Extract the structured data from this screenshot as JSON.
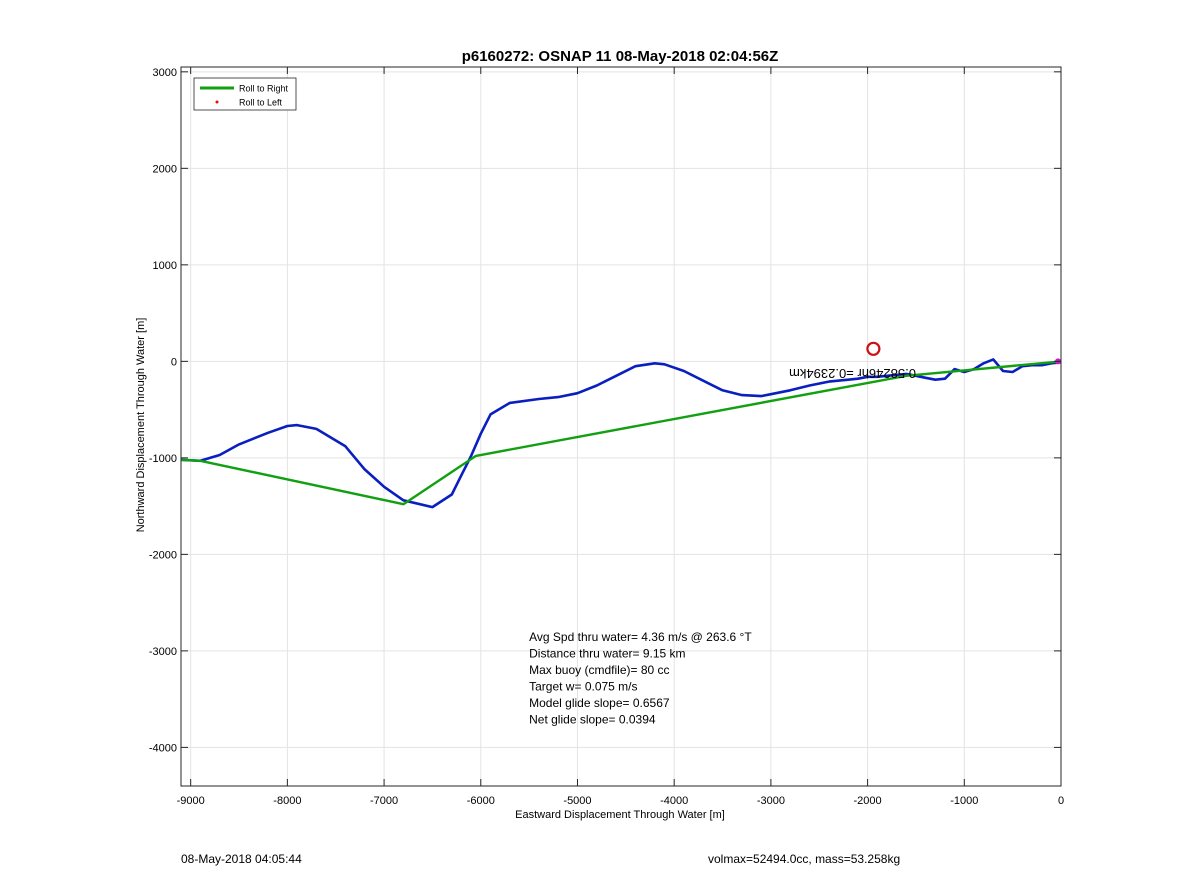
{
  "chart_data": {
    "type": "line",
    "title": "p6160272: OSNAP 11 08-May-2018 02:04:56Z",
    "xlabel": "Eastward Displacement Through Water [m]",
    "ylabel": "Northward Displacement Through Water [m]",
    "xlim": [
      -9100,
      0
    ],
    "ylim": [
      -4400,
      3050
    ],
    "xticks": [
      -9000,
      -8000,
      -7000,
      -6000,
      -5000,
      -4000,
      -3000,
      -2000,
      -1000,
      0
    ],
    "yticks": [
      -4000,
      -3000,
      -2000,
      -1000,
      0,
      1000,
      2000,
      3000
    ],
    "grid": true,
    "legend": {
      "placement": "top-left",
      "entries": [
        {
          "label": "Roll to Right",
          "color": "#12a012",
          "marker": "line"
        },
        {
          "label": "Roll to Left",
          "color": "#e01010",
          "marker": "dot"
        }
      ]
    },
    "series": [
      {
        "color": "#0a1fbf",
        "x": [
          0,
          -100,
          -200,
          -300,
          -400,
          -500,
          -600,
          -700,
          -800,
          -900,
          -1000,
          -1100,
          -1200,
          -1300,
          -1400,
          -1500,
          -1600,
          -1700,
          -1800,
          -1900,
          -2000,
          -2100,
          -2200,
          -2400,
          -2600,
          -2800,
          -3000,
          -3100,
          -3300,
          -3500,
          -3700,
          -3900,
          -4100,
          -4200,
          -4400,
          -4600,
          -4800,
          -5000,
          -5200,
          -5400,
          -5700,
          -5900,
          -6000,
          -6100,
          -6200,
          -6300,
          -6500,
          -6800,
          -7000,
          -7200,
          -7400,
          -7700,
          -7900,
          -8000,
          -8200,
          -8500,
          -8700,
          -8900,
          -9100
        ],
        "y": [
          -10,
          -20,
          -40,
          -40,
          -50,
          -110,
          -100,
          20,
          -20,
          -80,
          -110,
          -80,
          -180,
          -190,
          -170,
          -150,
          -130,
          -140,
          -150,
          -160,
          -160,
          -180,
          -190,
          -210,
          -250,
          -300,
          -340,
          -360,
          -350,
          -300,
          -200,
          -100,
          -30,
          -20,
          -50,
          -150,
          -250,
          -330,
          -370,
          -390,
          -430,
          -550,
          -750,
          -980,
          -1180,
          -1380,
          -1510,
          -1440,
          -1300,
          -1120,
          -880,
          -700,
          -660,
          -670,
          -740,
          -860,
          -970,
          -1030,
          -1020
        ]
      },
      {
        "color": "#12a012",
        "x": [
          0,
          -1600,
          -6050,
          -6800,
          -8900,
          -9100
        ],
        "y": [
          0,
          -150,
          -980,
          -1480,
          -1030,
          -1020
        ]
      }
    ],
    "annotations": [
      {
        "text": "Avg Spd thru water=  4.36 m/s @ 263.6 °T",
        "x": -5500,
        "y": -2900
      },
      {
        "text": "Distance thru water=  9.15 km",
        "x": -5500,
        "y": -3070
      },
      {
        "text": "Max buoy (cmdfile)= 80 cc",
        "x": -5500,
        "y": -3240
      },
      {
        "text": "Target w= 0.075 m/s",
        "x": -5500,
        "y": -3410
      },
      {
        "text": "Model glide slope= 0.6567",
        "x": -5500,
        "y": -3580
      },
      {
        "text": "Net glide slope= 0.0394",
        "x": -5500,
        "y": -3750
      }
    ],
    "marker": {
      "x": -1940,
      "y": 130,
      "color": "#d01010"
    },
    "rotated_label": {
      "text": "0.58246hr =0.2394km",
      "x": -1500,
      "y": -80
    }
  },
  "footer": {
    "timestamp": "08-May-2018 04:05:44",
    "info": "volmax=52494.0cc, mass=53.258kg"
  }
}
